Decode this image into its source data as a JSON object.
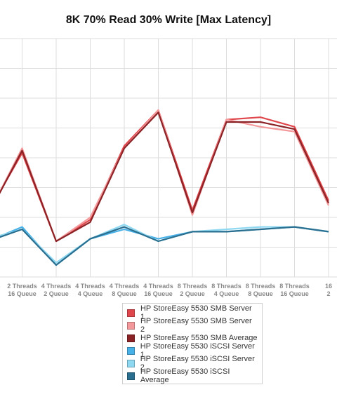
{
  "chart_data": {
    "type": "line",
    "title": "8K 70% Read 30% Write [Max Latency]",
    "xlabel": "",
    "ylabel": "",
    "ylim": [
      0,
      100
    ],
    "grid": true,
    "legend_position": "bottom",
    "categories": [
      [
        "Threads",
        "Queue"
      ],
      [
        "2 Threads",
        "16 Queue"
      ],
      [
        "4 Threads",
        "2 Queue"
      ],
      [
        "4 Threads",
        "4 Queue"
      ],
      [
        "4 Threads",
        "8 Queue"
      ],
      [
        "4 Threads",
        "16 Queue"
      ],
      [
        "8 Threads",
        "2 Queue"
      ],
      [
        "8 Threads",
        "4 Queue"
      ],
      [
        "8 Threads",
        "8 Queue"
      ],
      [
        "8 Threads",
        "16 Queue"
      ],
      [
        "16",
        "2"
      ]
    ],
    "series": [
      {
        "name": "HP StoreEasy 5530 SMB Server 1",
        "color": "#e0474c",
        "values": [
          27,
          52,
          15,
          24,
          55,
          70,
          28,
          66,
          67,
          63,
          32
        ]
      },
      {
        "name": "HP StoreEasy 5530 SMB Server 2",
        "color": "#f4999b",
        "values": [
          26,
          54,
          15,
          25,
          54,
          70,
          26,
          66,
          63,
          61,
          30
        ]
      },
      {
        "name": "HP StoreEasy 5530 SMB Average",
        "color": "#8b2226",
        "values": [
          26,
          53,
          15,
          23,
          54,
          69,
          27,
          65,
          65,
          62,
          31
        ]
      },
      {
        "name": "HP StoreEasy 5530 iSCSI Server 1",
        "color": "#48b1e8",
        "values": [
          15,
          21,
          5,
          16,
          20,
          16,
          19,
          19,
          20,
          21,
          19
        ]
      },
      {
        "name": "HP StoreEasy 5530 iSCSI Server 2",
        "color": "#8fd8f2",
        "values": [
          16,
          20,
          6,
          16,
          22,
          15,
          19,
          20,
          21,
          21,
          19
        ]
      },
      {
        "name": "HP StoreEasy 5530 iSCSI Average",
        "color": "#2a6f8f",
        "values": [
          15,
          20,
          5,
          16,
          21,
          15,
          19,
          19,
          20,
          21,
          19
        ]
      }
    ]
  }
}
